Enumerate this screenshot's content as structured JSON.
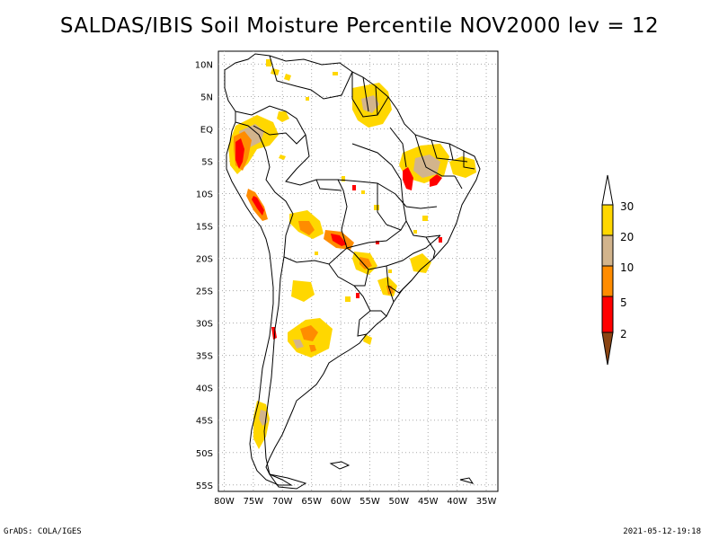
{
  "title": "SALDAS/IBIS Soil Moisture Percentile NOV2000 lev = 12",
  "footer": {
    "left": "GrADS: COLA/IGES",
    "right": "2021-05-12-19:18"
  },
  "map": {
    "lat_labels": [
      "10N",
      "5N",
      "EQ",
      "5S",
      "10S",
      "15S",
      "20S",
      "25S",
      "30S",
      "35S",
      "40S",
      "45S",
      "50S",
      "55S"
    ],
    "lon_labels": [
      "80W",
      "75W",
      "70W",
      "65W",
      "60W",
      "55W",
      "50W",
      "45W",
      "40W",
      "35W"
    ],
    "lat_range": [
      -56,
      12
    ],
    "lon_range": [
      -81,
      -33
    ],
    "grid": true
  },
  "legend": {
    "labels": [
      "30",
      "20",
      "10",
      "5",
      "2"
    ],
    "colors": [
      "#ffd700",
      "#d2b48c",
      "#ff8c00",
      "#ff0000",
      "#8b4513"
    ]
  },
  "colors": {
    "coast": "#000000",
    "grid": "#aaaaaa",
    "pct_20_30": "#ffd700",
    "pct_10_20": "#d2b48c",
    "pct_5_10": "#ff8c00",
    "pct_2_5": "#ff0000"
  }
}
